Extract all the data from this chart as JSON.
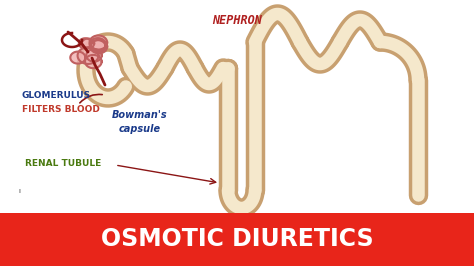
{
  "bg_color": "#ffffff",
  "banner_color": "#e8251a",
  "banner_text": "OSMOTIC DIURETICS",
  "banner_text_color": "#ffffff",
  "title_text": "NEPHRON",
  "title_color": "#b02020",
  "label_glomerulus_line1": "GLOMERULUS",
  "label_glomerulus_line2": "FILTERS BLOOD",
  "label_bowman": "Bowman's\ncapsule",
  "label_renal": "RENAL TUBULE",
  "label_color_blue": "#1a3a8a",
  "label_color_red": "#c0392b",
  "label_color_green": "#4a7a10",
  "tubule_outer": "#c8a070",
  "tubule_inner": "#f5e8cc",
  "glom_fill": "#f0b0b0",
  "glom_stroke": "#c06060",
  "art_color": "#8b1515"
}
